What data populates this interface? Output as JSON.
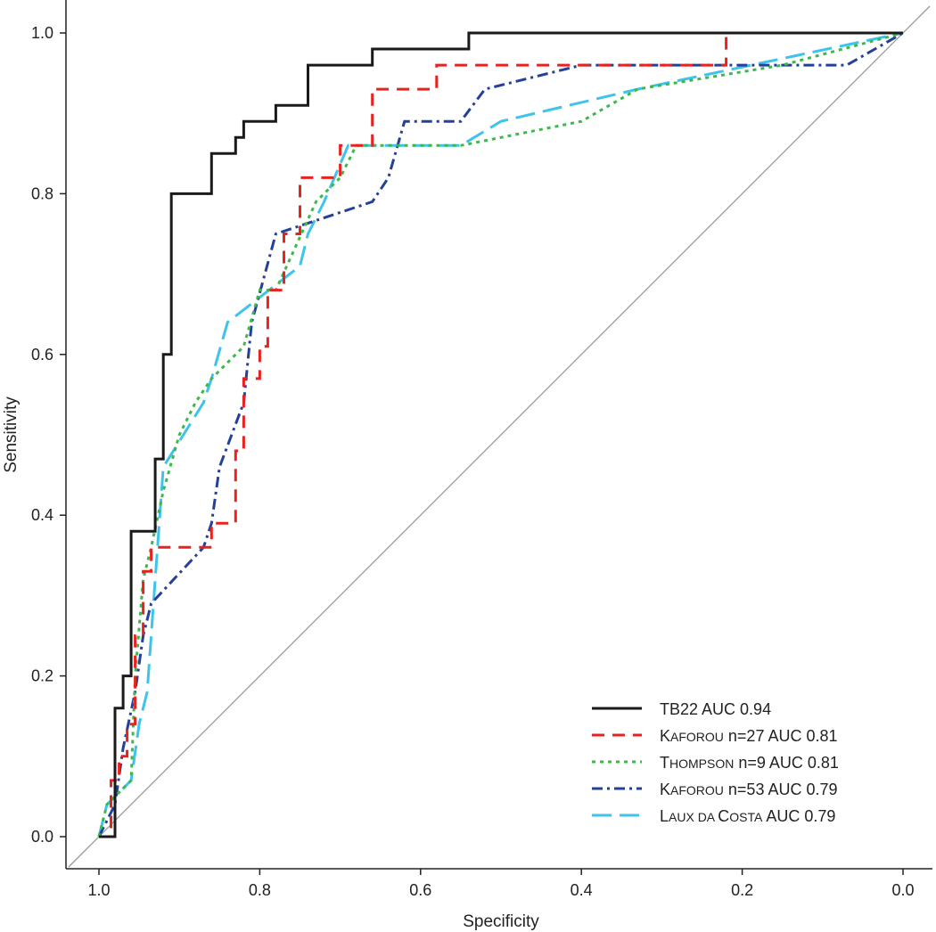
{
  "chart_data": {
    "type": "line",
    "title": "",
    "xlabel": "Specificity",
    "ylabel": "Sensitivity",
    "xlim": [
      1.0,
      0.0
    ],
    "ylim": [
      0.0,
      1.0
    ],
    "x_reversed": true,
    "x_ticks": [
      "1.0",
      "0.8",
      "0.6",
      "0.4",
      "0.2",
      "0.0"
    ],
    "y_ticks": [
      "0.0",
      "0.2",
      "0.4",
      "0.6",
      "0.8",
      "1.0"
    ],
    "legend_position": "bottom-right",
    "diagonal": {
      "from": [
        1.0,
        0.0
      ],
      "to": [
        0.0,
        1.0
      ],
      "color": "#999999"
    },
    "series": [
      {
        "name": "TB22 AUC 0.94",
        "legend": {
          "first": "TB22",
          "small": "",
          "rest": " AUC 0.94"
        },
        "color": "#1a1a1a",
        "dash": "",
        "x": [
          1.0,
          0.98,
          0.98,
          0.97,
          0.97,
          0.96,
          0.96,
          0.93,
          0.93,
          0.92,
          0.92,
          0.91,
          0.91,
          0.86,
          0.86,
          0.83,
          0.83,
          0.82,
          0.82,
          0.78,
          0.78,
          0.74,
          0.74,
          0.66,
          0.66,
          0.54,
          0.54,
          0.3,
          0.0
        ],
        "y": [
          0.0,
          0.0,
          0.16,
          0.16,
          0.2,
          0.2,
          0.38,
          0.38,
          0.47,
          0.47,
          0.6,
          0.6,
          0.8,
          0.8,
          0.85,
          0.85,
          0.87,
          0.87,
          0.89,
          0.89,
          0.91,
          0.91,
          0.96,
          0.96,
          0.98,
          0.98,
          1.0,
          1.0,
          1.0
        ]
      },
      {
        "name": "Kaforou n=27 AUC 0.81",
        "legend": {
          "first": "K",
          "small": "AFOROU",
          "rest": " n=27 AUC 0.81"
        },
        "color": "#e8231f",
        "dash": "14,9",
        "x": [
          1.0,
          0.985,
          0.985,
          0.975,
          0.975,
          0.965,
          0.965,
          0.955,
          0.955,
          0.945,
          0.945,
          0.935,
          0.935,
          0.86,
          0.86,
          0.83,
          0.83,
          0.82,
          0.82,
          0.8,
          0.8,
          0.79,
          0.79,
          0.77,
          0.77,
          0.75,
          0.75,
          0.7,
          0.7,
          0.68,
          0.68,
          0.66,
          0.66,
          0.58,
          0.58,
          0.42,
          0.42,
          0.22,
          0.22,
          0.0
        ],
        "y": [
          0.0,
          0.0,
          0.07,
          0.07,
          0.1,
          0.1,
          0.14,
          0.14,
          0.25,
          0.25,
          0.33,
          0.33,
          0.36,
          0.36,
          0.39,
          0.39,
          0.48,
          0.48,
          0.57,
          0.57,
          0.61,
          0.61,
          0.68,
          0.68,
          0.75,
          0.75,
          0.82,
          0.82,
          0.86,
          0.86,
          0.86,
          0.86,
          0.93,
          0.93,
          0.96,
          0.96,
          0.96,
          0.96,
          1.0,
          1.0
        ]
      },
      {
        "name": "Thompson n=9 AUC 0.81",
        "legend": {
          "first": "T",
          "small": "HOMPSON",
          "rest": " n=9 AUC 0.81"
        },
        "color": "#3cb94a",
        "dash": "4,5",
        "x": [
          1.0,
          0.99,
          0.99,
          0.96,
          0.96,
          0.955,
          0.955,
          0.945,
          0.945,
          0.935,
          0.935,
          0.92,
          0.92,
          0.9,
          0.9,
          0.88,
          0.88,
          0.86,
          0.86,
          0.82,
          0.82,
          0.8,
          0.8,
          0.78,
          0.78,
          0.73,
          0.73,
          0.7,
          0.7,
          0.68,
          0.68,
          0.55,
          0.55,
          0.4,
          0.4,
          0.33,
          0.33,
          0.15,
          0.15,
          0.0
        ],
        "y": [
          0.0,
          0.04,
          0.04,
          0.07,
          0.07,
          0.2,
          0.2,
          0.32,
          0.32,
          0.36,
          0.36,
          0.43,
          0.43,
          0.5,
          0.5,
          0.54,
          0.54,
          0.57,
          0.57,
          0.61,
          0.61,
          0.68,
          0.68,
          0.68,
          0.68,
          0.79,
          0.79,
          0.82,
          0.82,
          0.86,
          0.86,
          0.86,
          0.86,
          0.89,
          0.89,
          0.93,
          0.93,
          0.96,
          0.96,
          1.0
        ]
      },
      {
        "name": "Kaforou n=53 AUC 0.79",
        "legend": {
          "first": "K",
          "small": "AFOROU",
          "rest": " n=53 AUC 0.79"
        },
        "color": "#24409a",
        "dash": "12,5,3,5",
        "x": [
          1.0,
          0.98,
          0.98,
          0.97,
          0.97,
          0.955,
          0.955,
          0.945,
          0.945,
          0.935,
          0.935,
          0.87,
          0.87,
          0.86,
          0.86,
          0.85,
          0.85,
          0.82,
          0.82,
          0.81,
          0.81,
          0.78,
          0.78,
          0.66,
          0.66,
          0.64,
          0.64,
          0.62,
          0.62,
          0.55,
          0.55,
          0.52,
          0.52,
          0.4,
          0.4,
          0.07,
          0.07,
          0.0
        ],
        "y": [
          0.0,
          0.04,
          0.04,
          0.11,
          0.11,
          0.18,
          0.18,
          0.25,
          0.25,
          0.29,
          0.29,
          0.36,
          0.36,
          0.39,
          0.39,
          0.46,
          0.46,
          0.54,
          0.54,
          0.64,
          0.64,
          0.75,
          0.75,
          0.79,
          0.79,
          0.82,
          0.82,
          0.89,
          0.89,
          0.89,
          0.89,
          0.93,
          0.93,
          0.96,
          0.96,
          0.96,
          0.96,
          1.0
        ]
      },
      {
        "name": "Laux da Costa AUC 0.79",
        "legend": {
          "first": "L",
          "small": "AUX DA ",
          "first2": "C",
          "small2": "OSTA",
          "rest": " AUC 0.79"
        },
        "color": "#3ec3ed",
        "dash": "22,9",
        "x": [
          1.0,
          0.99,
          0.99,
          0.96,
          0.96,
          0.95,
          0.95,
          0.94,
          0.94,
          0.93,
          0.93,
          0.92,
          0.92,
          0.87,
          0.87,
          0.86,
          0.86,
          0.84,
          0.84,
          0.75,
          0.75,
          0.74,
          0.74,
          0.72,
          0.72,
          0.69,
          0.69,
          0.55,
          0.55,
          0.5,
          0.5,
          0.33,
          0.33,
          0.0
        ],
        "y": [
          0.0,
          0.04,
          0.04,
          0.07,
          0.07,
          0.14,
          0.14,
          0.18,
          0.18,
          0.32,
          0.32,
          0.46,
          0.46,
          0.54,
          0.54,
          0.57,
          0.57,
          0.64,
          0.64,
          0.71,
          0.71,
          0.75,
          0.75,
          0.79,
          0.79,
          0.86,
          0.86,
          0.86,
          0.86,
          0.89,
          0.89,
          0.93,
          0.93,
          1.0
        ]
      }
    ]
  }
}
